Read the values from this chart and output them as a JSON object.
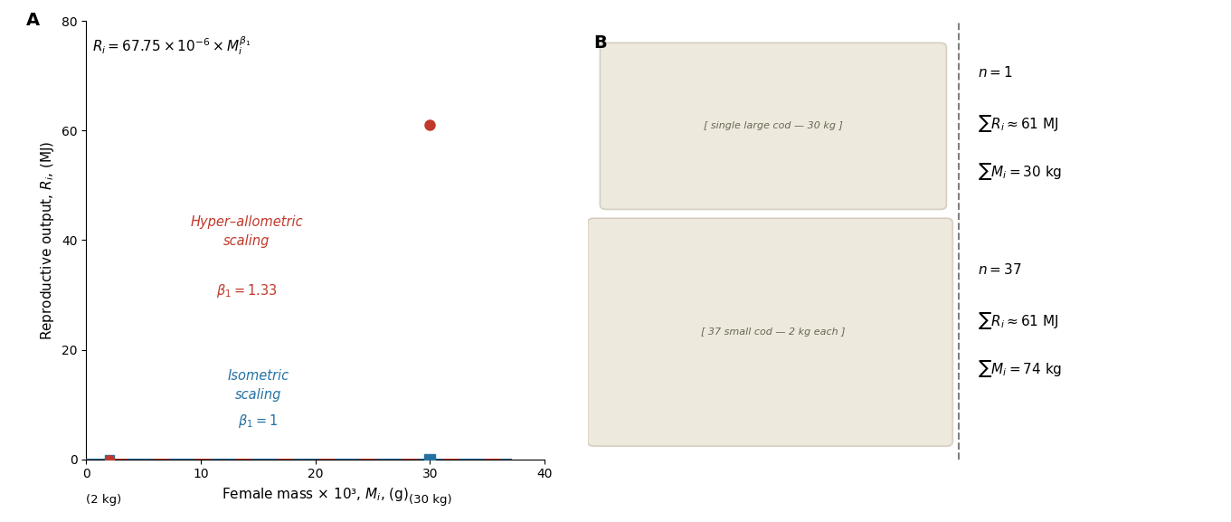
{
  "panel_A_label": "A",
  "panel_B_label": "B",
  "formula_text": "$R_i = 67.75 \\times 10^{-6} \\times M_i^{\\beta_1}$",
  "ylabel": "Reproductive output, $R_i$, (MJ)",
  "xlabel": "Female mass × 10³, $M_i$, (g)",
  "xlim": [
    0,
    40
  ],
  "ylim": [
    0,
    80
  ],
  "xticks": [
    0,
    10,
    20,
    30,
    40
  ],
  "yticks": [
    0,
    20,
    40,
    60,
    80
  ],
  "red_line_color": "#C0392B",
  "blue_line_color": "#2471A3",
  "red_dot_x": 30,
  "red_dot_y": 61,
  "hyper_label": "Hyper–allometric\nscaling",
  "hyper_beta": "$\\beta_1 = 1.33$",
  "iso_label": "Isometric\nscaling",
  "iso_beta": "$\\beta_1 = 1$",
  "label_2kg": "(2 kg)",
  "label_30kg": "(30 kg)",
  "n1_text": "$n = 1$",
  "sum_Ri_1_text": "$\\sum R_i \\approx 61$ MJ",
  "sum_Mi_1_text": "$\\sum M_i = 30$ kg",
  "n37_text": "$n = 37$",
  "sum_Ri_37_text": "$\\sum R_i \\approx 61$ MJ",
  "sum_Mi_37_text": "$\\sum M_i = 74$ kg",
  "background_color": "#ffffff",
  "beta1_hyper": 1.33,
  "coeff": 6.775e-05,
  "mass_2kg_g": 2000,
  "mass_30kg_g": 30000
}
